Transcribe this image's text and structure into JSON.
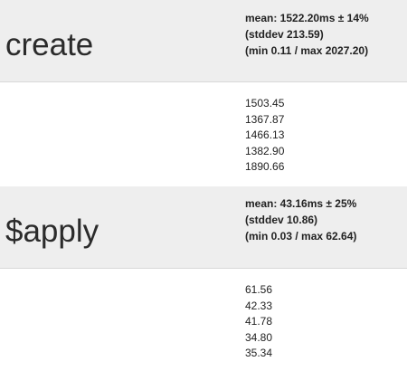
{
  "benchmarks": [
    {
      "name": "create",
      "mean_line": "mean: 1522.20ms ± 14%",
      "stddev_line": "(stddev 213.59)",
      "minmax_line": "(min 0.11 / max 2027.20)",
      "samples": [
        "1503.45",
        "1367.87",
        "1466.13",
        "1382.90",
        "1890.66"
      ]
    },
    {
      "name": "$apply",
      "mean_line": "mean: 43.16ms ± 25%",
      "stddev_line": "(stddev 10.86)",
      "minmax_line": "(min 0.03 / max 62.64)",
      "samples": [
        "61.56",
        "42.33",
        "41.78",
        "34.80",
        "35.34"
      ]
    }
  ]
}
